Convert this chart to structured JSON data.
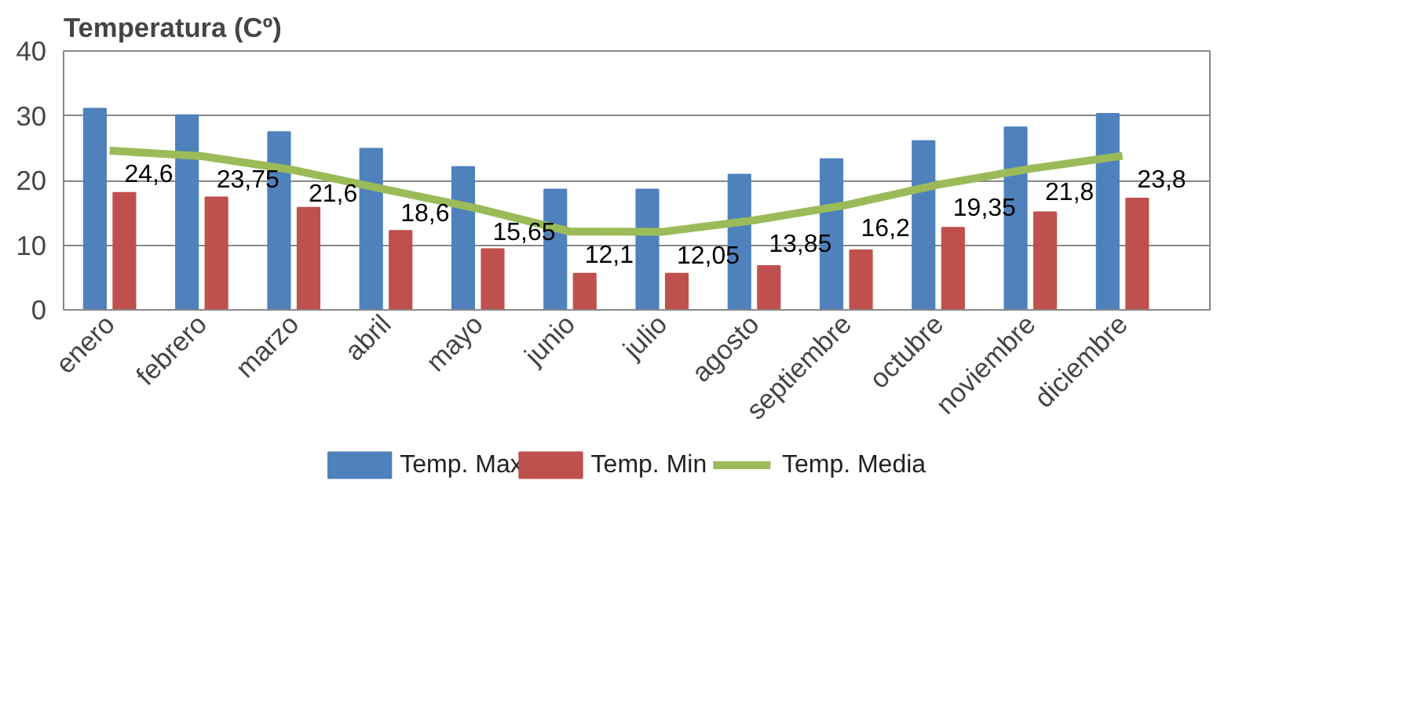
{
  "chart_data": {
    "type": "bar",
    "title": "Temperatura (Cº)",
    "categories": [
      "enero",
      "febrero",
      "marzo",
      "abril",
      "mayo",
      "junio",
      "julio",
      "agosto",
      "septiembre",
      "octubre",
      "noviembre",
      "diciembre"
    ],
    "series": [
      {
        "name": "Temp. Max",
        "color": "#4f81bd",
        "values": [
          31.1,
          30.1,
          27.5,
          24.9,
          22.1,
          18.6,
          18.6,
          20.9,
          23.3,
          26.1,
          28.2,
          30.3
        ]
      },
      {
        "name": "Temp. Min",
        "color": "#c0504d",
        "values": [
          18.1,
          17.4,
          15.8,
          12.2,
          9.4,
          5.6,
          5.6,
          6.8,
          9.2,
          12.7,
          15.1,
          17.2
        ]
      },
      {
        "name": "Temp. Media",
        "type": "line",
        "color": "#9bbb59",
        "values": [
          24.6,
          23.75,
          21.6,
          18.6,
          15.65,
          12.1,
          12.05,
          13.85,
          16.2,
          19.35,
          21.8,
          23.8
        ],
        "value_labels": [
          "24,6",
          "23,75",
          "21,6",
          "18,6",
          "15,65",
          "12,1",
          "12,05",
          "13,85",
          "16,2",
          "19,35",
          "21,8",
          "23,8"
        ]
      }
    ],
    "ylim": [
      0,
      40
    ],
    "yticks": [
      0,
      10,
      20,
      30,
      40
    ],
    "grid": "y",
    "legend": "bottom"
  }
}
